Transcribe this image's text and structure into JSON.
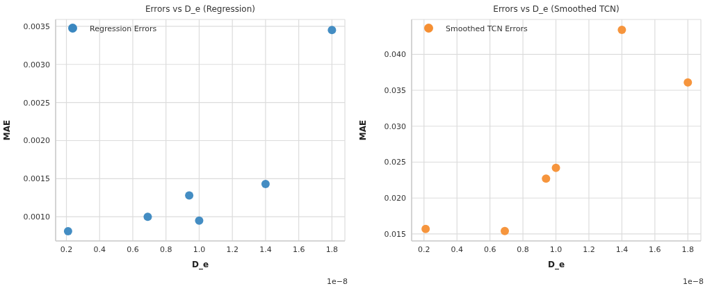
{
  "chart_data": [
    {
      "type": "scatter",
      "title": "Errors vs D_e (Regression)",
      "xlabel": "D_e",
      "ylabel": "MAE",
      "annotations": [
        "1e−8"
      ],
      "x": [
        0.21,
        0.69,
        0.94,
        1.0,
        1.4,
        1.8
      ],
      "series": [
        {
          "name": "Regression Errors",
          "color": "#3a87c0",
          "values": [
            0.00081,
            0.001,
            0.00128,
            0.00095,
            0.00143,
            0.00345
          ]
        }
      ],
      "xlim": [
        0.135,
        1.878
      ],
      "xticks": [
        0.2,
        0.4,
        0.6,
        0.8,
        {
          "value": 1,
          "label": "1.0"
        },
        1.2,
        1.4,
        1.6,
        1.8
      ],
      "ylim": [
        0.000683,
        0.00359
      ],
      "yticks": [
        {
          "value": 0.001,
          "label": "0.0010"
        },
        0.0015,
        {
          "value": 0.002,
          "label": "0.0020"
        },
        0.0025,
        {
          "value": 0.003,
          "label": "0.0030"
        },
        0.0035
      ],
      "grid": true,
      "legend": "top left",
      "marker": "circle"
    },
    {
      "type": "scatter",
      "title": "Errors vs D_e (Smoothed TCN)",
      "xlabel": "D_e",
      "ylabel": "MAE",
      "annotations": [
        "1e−8"
      ],
      "x": [
        0.21,
        0.69,
        0.94,
        1.0,
        1.4,
        1.8
      ],
      "series": [
        {
          "name": "Smoothed TCN Errors",
          "color": "#f58f33",
          "values": [
            0.0157,
            0.0154,
            0.0227,
            0.0242,
            0.0434,
            0.0361
          ]
        }
      ],
      "xlim": [
        0.125,
        1.879
      ],
      "xticks": [
        0.2,
        0.4,
        0.6,
        0.8,
        {
          "value": 1,
          "label": "1.0"
        },
        1.2,
        1.4,
        1.6,
        1.8
      ],
      "ylim": [
        0.01403,
        0.04486
      ],
      "yticks": [
        0.015,
        {
          "value": 0.02,
          "label": "0.020"
        },
        0.025,
        {
          "value": 0.03,
          "label": "0.030"
        },
        0.035,
        {
          "value": 0.04,
          "label": "0.040"
        }
      ],
      "grid": true,
      "legend": "top left",
      "marker": "circle"
    }
  ]
}
